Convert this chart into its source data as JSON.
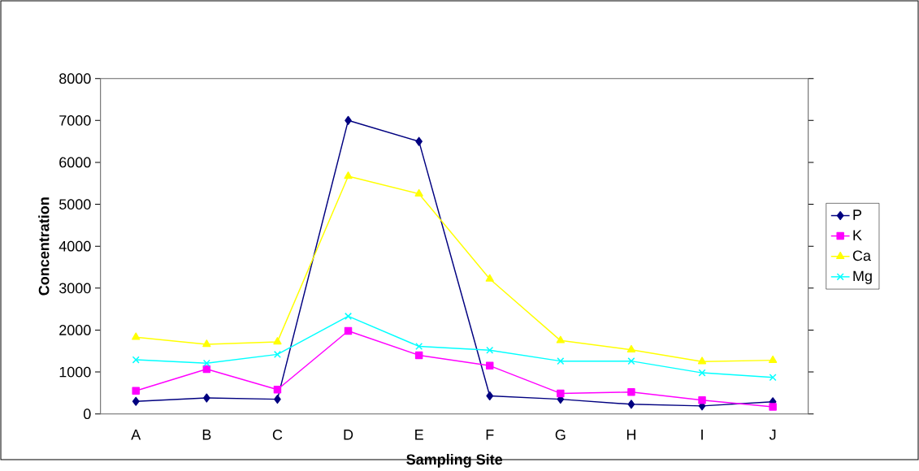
{
  "chart_data": {
    "type": "line",
    "xlabel": "Sampling Site",
    "ylabel": "Concentration",
    "categories": [
      "A",
      "B",
      "C",
      "D",
      "E",
      "F",
      "G",
      "H",
      "I",
      "J"
    ],
    "ylim": [
      0,
      8000
    ],
    "yticks": [
      0,
      1000,
      2000,
      3000,
      4000,
      5000,
      6000,
      7000,
      8000
    ],
    "legend": "right",
    "line_style": "solid",
    "series": [
      {
        "name": "P",
        "color": "#000080",
        "marker": "diamond",
        "values": [
          300,
          380,
          350,
          7000,
          6500,
          430,
          350,
          230,
          190,
          290
        ]
      },
      {
        "name": "K",
        "color": "#ff00ff",
        "marker": "square",
        "values": [
          550,
          1070,
          580,
          1980,
          1400,
          1150,
          490,
          520,
          330,
          170
        ]
      },
      {
        "name": "Ca",
        "color": "#ffff00",
        "marker": "triangle",
        "values": [
          1830,
          1660,
          1720,
          5670,
          5250,
          3220,
          1750,
          1530,
          1250,
          1280
        ]
      },
      {
        "name": "Mg",
        "color": "#00ffff",
        "marker": "cross",
        "values": [
          1290,
          1210,
          1420,
          2330,
          1610,
          1520,
          1260,
          1260,
          980,
          870
        ]
      }
    ]
  }
}
